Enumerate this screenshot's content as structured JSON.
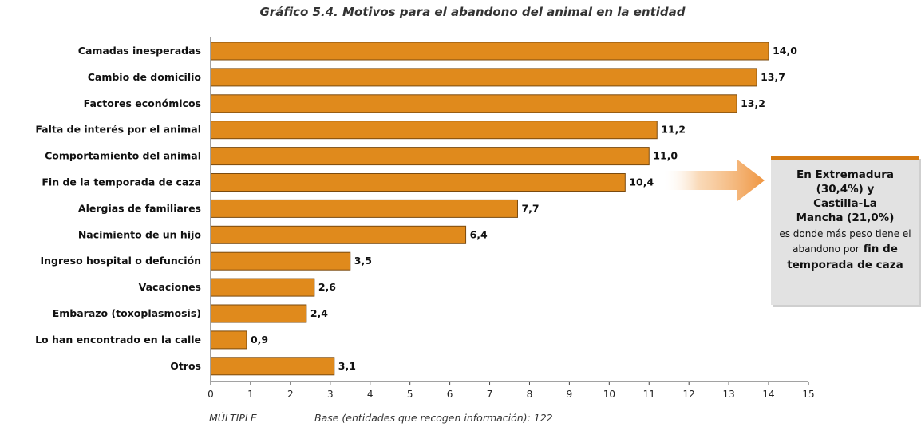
{
  "chart_data": {
    "type": "bar",
    "orientation": "horizontal",
    "title": "Gráfico 5.4. Motivos para el abandono del animal en la entidad",
    "categories": [
      "Camadas inesperadas",
      "Cambio de domicilio",
      "Factores económicos",
      "Falta de interés por el animal",
      "Comportamiento del animal",
      "Fin de la temporada de caza",
      "Alergias de familiares",
      "Nacimiento de un hijo",
      "Ingreso hospital o defunción",
      "Vacaciones",
      "Embarazo (toxoplasmosis)",
      "Lo han encontrado en la calle",
      "Otros"
    ],
    "values": [
      14.0,
      13.7,
      13.2,
      11.2,
      11.0,
      10.4,
      7.7,
      6.4,
      3.5,
      2.6,
      2.4,
      0.9,
      3.1
    ],
    "value_labels": [
      "14,0",
      "13,7",
      "13,2",
      "11,2",
      "11,0",
      "10,4",
      "7,7",
      "6,4",
      "3,5",
      "2,6",
      "2,4",
      "0,9",
      "3,1"
    ],
    "xlim": [
      0,
      15
    ],
    "xticks": [
      "0",
      "1",
      "2",
      "3",
      "4",
      "5",
      "6",
      "7",
      "8",
      "9",
      "10",
      "11",
      "12",
      "13",
      "14",
      "15"
    ],
    "grid": false,
    "bar_color": "#e08a1c",
    "bar_edge_color": "#7a4a0e",
    "callout_arrow_color": "#f0a04a"
  },
  "callout": {
    "line1": "En Extremadura",
    "line2": "(30,4%) y",
    "line3": "Castilla-La",
    "line4": "Mancha (21,0%)",
    "text_mid": "es donde más peso tiene el abandono por",
    "bold_tail": "fin de temporada de caza"
  },
  "footer": {
    "multiple": "MÚLTIPLE",
    "base": "Base (entidades que recogen información): 122"
  }
}
